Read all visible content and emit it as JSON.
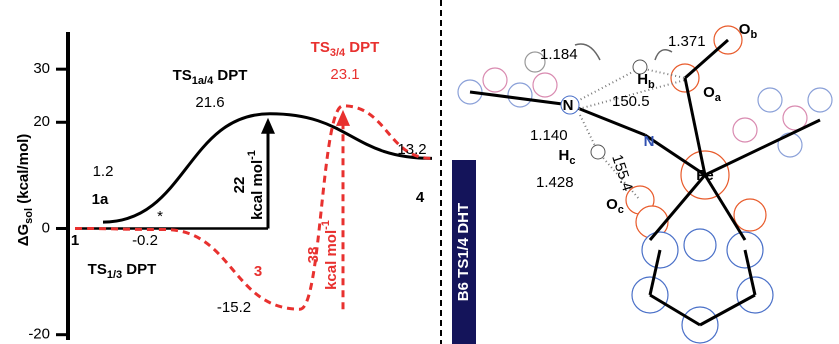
{
  "chart_data": {
    "type": "line",
    "ylabel": [
      "ΔG",
      "sol",
      " (kcal/mol)"
    ],
    "ylim": [
      -21,
      37
    ],
    "yticks": [
      -20,
      0,
      20,
      30
    ],
    "series": [
      {
        "color": "#000000",
        "line_style": "solid",
        "values": [
          1.2,
          21.6,
          13.2
        ],
        "value_labels": [
          "1.2",
          "21.6",
          "13.2"
        ],
        "labels": [
          "1a",
          [
            "TS",
            "1a/4",
            " DPT"
          ],
          "4"
        ]
      },
      {
        "color": "#e8312f",
        "line_style": "dashed",
        "values": [
          0,
          -0.2,
          -15.2,
          23.1,
          13.2
        ],
        "value_labels": [
          null,
          "-0.2",
          "-15.2",
          "23.1",
          null
        ],
        "labels": [
          "1",
          [
            "TS",
            "1/3",
            " DPT"
          ],
          "3",
          [
            "TS",
            "3/4",
            " DPT"
          ],
          null
        ]
      }
    ],
    "annotations": [
      {
        "text": "22",
        "unit": [
          "kcal mol",
          "-1"
        ],
        "color": "#000000"
      },
      {
        "text": "38",
        "unit": [
          "kcal mol",
          "-1"
        ],
        "color": "#e8312f"
      }
    ],
    "note": "*"
  },
  "structure": {
    "banner": "B6 TS1/4 DHT",
    "atoms": [
      [
        "N"
      ],
      [
        "N"
      ],
      [
        "Fe"
      ],
      [
        "O",
        "a"
      ],
      [
        "O",
        "b"
      ],
      [
        "H",
        "b"
      ],
      [
        "H",
        "c"
      ],
      [
        "O",
        "c"
      ]
    ],
    "distances": [
      "1.184",
      "1.371",
      "1.140",
      "1.428"
    ],
    "angles": [
      "150.5",
      "155.4"
    ]
  }
}
